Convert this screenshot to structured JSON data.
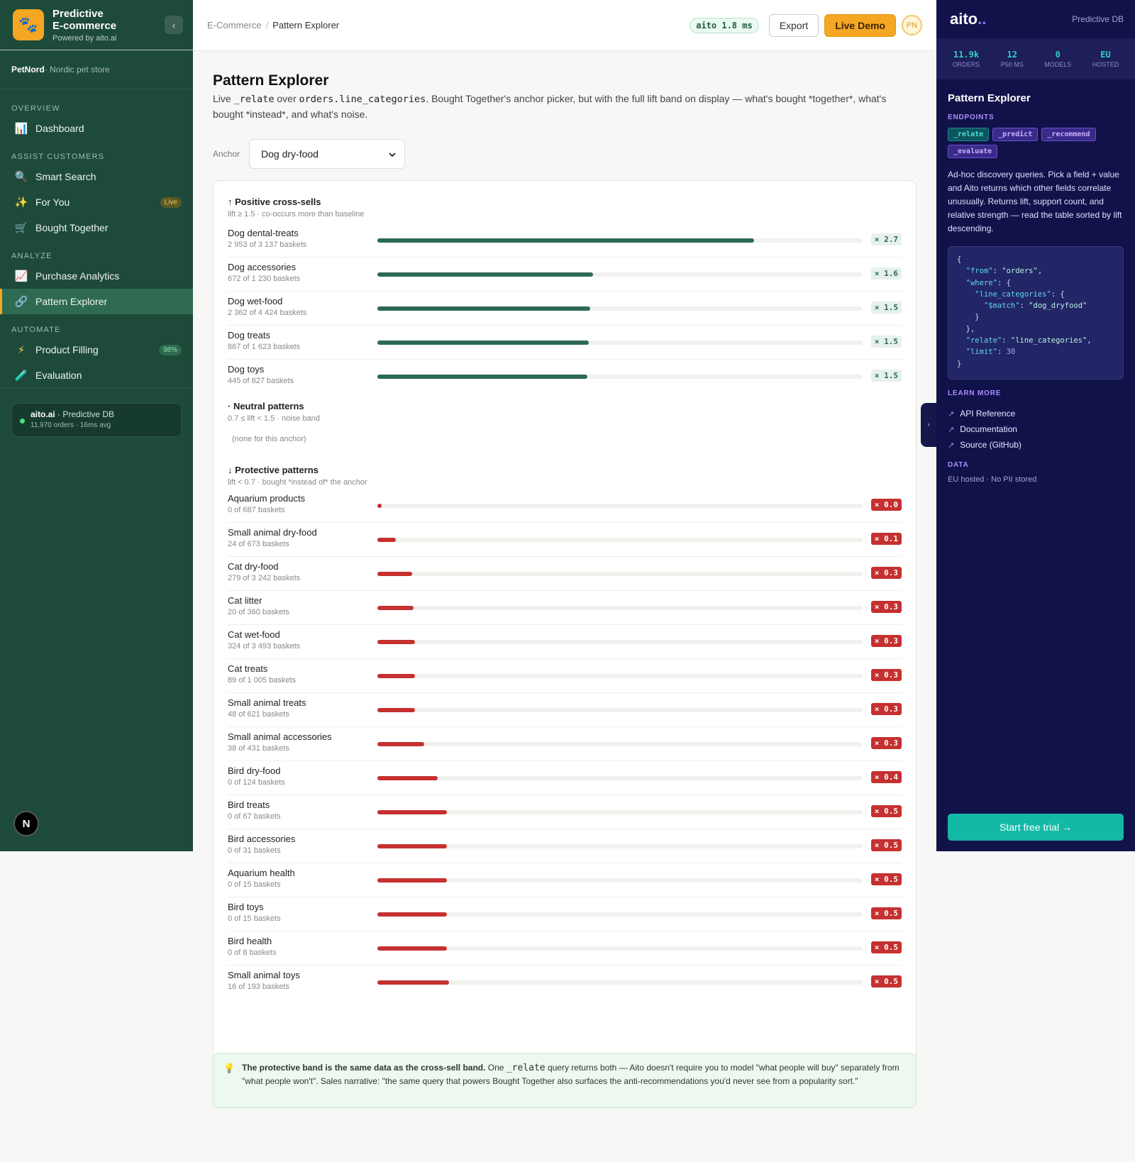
{
  "sidebar": {
    "brand_title_1": "Predictive",
    "brand_title_2": "E-commerce",
    "brand_sub": "Powered by aito.ai",
    "logo_icon": "paw-icon",
    "store_name": "PetNord",
    "store_desc": " · Nordic pet store",
    "sections": {
      "overview": "OVERVIEW",
      "assist": "ASSIST CUSTOMERS",
      "analyze": "ANALYZE",
      "automate": "AUTOMATE"
    },
    "items": {
      "dashboard": "Dashboard",
      "smart_search": "Smart Search",
      "for_you": "For You",
      "for_you_badge": "Live",
      "bought_together": "Bought Together",
      "purchase_analytics": "Purchase Analytics",
      "pattern_explorer": "Pattern Explorer",
      "product_filling": "Product Filling",
      "product_filling_badge": "98%",
      "evaluation": "Evaluation"
    },
    "status": {
      "name": "aito.ai",
      "suffix": " · Predictive DB",
      "detail": "11,970 orders · 16ms avg"
    },
    "n_badge": "N"
  },
  "topbar": {
    "crumb_root": "E-Commerce",
    "crumb_sep": "/",
    "crumb_current": "Pattern Explorer",
    "latency": "aito 1.8 ms",
    "export_label": "Export",
    "live_demo_label": "Live Demo",
    "avatar_initials": "PN"
  },
  "main": {
    "title": "Pattern Explorer",
    "desc_1": "Live ",
    "desc_code1": "_relate",
    "desc_2": " over ",
    "desc_code2": "orders.line_categories",
    "desc_3": ". Bought Together's anchor picker, but with the full lift band on display — what's bought *together*, what's bought *instead*, and what's noise.",
    "anchor_label": "Anchor",
    "anchor_value": "Dog dry-food",
    "positive": {
      "title": "↑ Positive cross-sells",
      "sub": "lift ≥ 1.5 · co-occurs more than baseline",
      "rows": [
        {
          "name": "Dog dental-treats",
          "count": "2 953 of 3 137 baskets",
          "lift_label": "× 2.7",
          "bar": 0.776
        },
        {
          "name": "Dog accessories",
          "count": "672 of 1 230 baskets",
          "lift_label": "× 1.6",
          "bar": 0.445
        },
        {
          "name": "Dog wet-food",
          "count": "2 362 of 4 424 baskets",
          "lift_label": "× 1.5",
          "bar": 0.439
        },
        {
          "name": "Dog treats",
          "count": "867 of 1 623 baskets",
          "lift_label": "× 1.5",
          "bar": 0.436
        },
        {
          "name": "Dog toys",
          "count": "445 of 827 baskets",
          "lift_label": "× 1.5",
          "bar": 0.433
        }
      ]
    },
    "neutral": {
      "title": "· Neutral patterns",
      "sub": "0.7 ≤ lift < 1.5 · noise band",
      "empty": "(none for this anchor)"
    },
    "protective": {
      "title": "↓ Protective patterns",
      "sub": "lift < 0.7 · bought *instead of* the anchor",
      "rows": [
        {
          "name": "Aquarium products",
          "count": "0 of 687 baskets",
          "lift_label": "× 0.0",
          "bar": 0.009
        },
        {
          "name": "Small animal dry-food",
          "count": "24 of 673 baskets",
          "lift_label": "× 0.1",
          "bar": 0.038
        },
        {
          "name": "Cat dry-food",
          "count": "279 of 3 242 baskets",
          "lift_label": "× 0.3",
          "bar": 0.072
        },
        {
          "name": "Cat litter",
          "count": "20 of 360 baskets",
          "lift_label": "× 0.3",
          "bar": 0.075
        },
        {
          "name": "Cat wet-food",
          "count": "324 of 3 493 baskets",
          "lift_label": "× 0.3",
          "bar": 0.078
        },
        {
          "name": "Cat treats",
          "count": "89 of 1 005 baskets",
          "lift_label": "× 0.3",
          "bar": 0.078
        },
        {
          "name": "Small animal treats",
          "count": "48 of 621 baskets",
          "lift_label": "× 0.3",
          "bar": 0.078
        },
        {
          "name": "Small animal accessories",
          "count": "38 of 431 baskets",
          "lift_label": "× 0.3",
          "bar": 0.096
        },
        {
          "name": "Bird dry-food",
          "count": "0 of 124 baskets",
          "lift_label": "× 0.4",
          "bar": 0.124
        },
        {
          "name": "Bird treats",
          "count": "0 of 67 baskets",
          "lift_label": "× 0.5",
          "bar": 0.144
        },
        {
          "name": "Bird accessories",
          "count": "0 of 31 baskets",
          "lift_label": "× 0.5",
          "bar": 0.144
        },
        {
          "name": "Aquarium health",
          "count": "0 of 15 baskets",
          "lift_label": "× 0.5",
          "bar": 0.144
        },
        {
          "name": "Bird toys",
          "count": "0 of 15 baskets",
          "lift_label": "× 0.5",
          "bar": 0.144
        },
        {
          "name": "Bird health",
          "count": "0 of 8 baskets",
          "lift_label": "× 0.5",
          "bar": 0.144
        },
        {
          "name": "Small animal toys",
          "count": "16 of 193 baskets",
          "lift_label": "× 0.5",
          "bar": 0.147
        }
      ]
    },
    "insight": {
      "bold": "The protective band is the same data as the cross-sell band.",
      "t1": " One ",
      "code": "_relate",
      "t2": " query returns both — Aito doesn't require you to model \"what people will buy\" separately from \"what people won't\". Sales narrative: \"the same query that powers Bought Together also surfaces the anti-recommendations you'd never see from a popularity sort.\""
    }
  },
  "panel": {
    "logo_a": "aito",
    "logo_b": "..",
    "tag": "Predictive DB",
    "stats": [
      {
        "value": "11.9k",
        "label": "ORDERS"
      },
      {
        "value": "12",
        "label": "P50 MS"
      },
      {
        "value": "0",
        "label": "MODELS"
      },
      {
        "value": "EU",
        "label": "HOSTED"
      }
    ],
    "title": "Pattern Explorer",
    "endpoints_label": "ENDPOINTS",
    "endpoints": [
      "_relate",
      "_predict",
      "_recommend",
      "_evaluate"
    ],
    "desc": "Ad-hoc discovery queries. Pick a field + value and Aito returns which other fields correlate unusually. Returns lift, support count, and relative strength — read the table sorted by lift descending.",
    "code": {
      "from_key": "\"from\"",
      "from_val": "\"orders\"",
      "where_key": "\"where\"",
      "lc_key": "\"line_categories\"",
      "match_key": "\"$match\"",
      "match_val": "\"dog_dryfood\"",
      "relate_key": "\"relate\"",
      "relate_val": "\"line_categories\"",
      "limit_key": "\"limit\"",
      "limit_val": "30"
    },
    "learn_more_label": "LEARN MORE",
    "links": [
      "API Reference",
      "Documentation",
      "Source (GitHub)"
    ],
    "data_label": "DATA",
    "data_note": "EU hosted · No PII stored",
    "trial_label": "Start free trial →",
    "toggle_icon": "›"
  },
  "colors": {
    "sidebar": "#1e4a3a",
    "accent": "#f5a623",
    "positive": "#2d6a52",
    "negative": "#c53030",
    "panel": "#12124a",
    "teal": "#14b8a6"
  }
}
